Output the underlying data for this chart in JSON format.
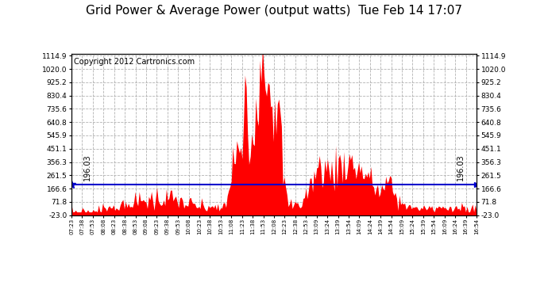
{
  "title": "Grid Power & Average Power (output watts)  Tue Feb 14 17:07",
  "copyright": "Copyright 2012 Cartronics.com",
  "avg_value": 196.03,
  "avg_label": "196.03",
  "y_min": -23.0,
  "y_max": 1114.9,
  "y_ticks": [
    -23.0,
    71.8,
    166.6,
    261.5,
    356.3,
    451.1,
    545.9,
    640.8,
    735.6,
    830.4,
    925.2,
    1020.0,
    1114.9
  ],
  "background_color": "#ffffff",
  "fill_color": "#ff0000",
  "avg_line_color": "#0000cc",
  "grid_color": "#aaaaaa",
  "title_fontsize": 11,
  "copyright_fontsize": 7,
  "x_tick_labels": [
    "07:23",
    "07:38",
    "07:53",
    "08:08",
    "08:23",
    "08:38",
    "08:53",
    "09:08",
    "09:23",
    "09:38",
    "09:53",
    "10:08",
    "10:23",
    "10:38",
    "10:53",
    "11:08",
    "11:23",
    "11:38",
    "11:53",
    "12:08",
    "12:23",
    "12:38",
    "12:53",
    "13:09",
    "13:24",
    "13:39",
    "13:54",
    "14:09",
    "14:24",
    "14:39",
    "14:54",
    "15:09",
    "15:24",
    "15:39",
    "15:54",
    "16:09",
    "16:24",
    "16:39",
    "16:54"
  ]
}
